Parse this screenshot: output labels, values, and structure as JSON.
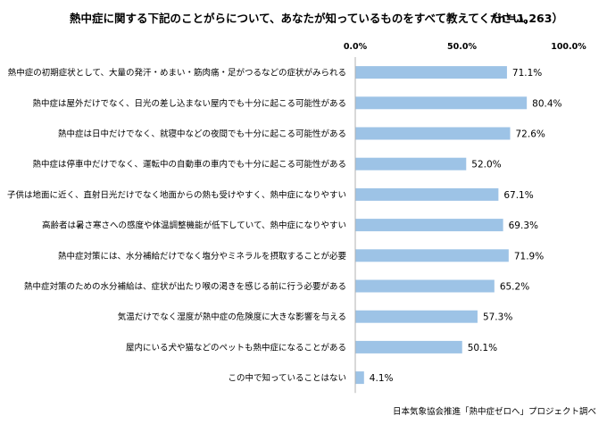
{
  "chart_data": {
    "type": "bar",
    "orientation": "horizontal",
    "title": "熱中症に関する下記のことがらについて、あなたが知っているものをすべて教えてください。",
    "sample_size": "（n＝1,263）",
    "source": "日本気象協会推進「熱中症ゼロへ」プロジェクト調べ",
    "xlim": [
      0,
      100
    ],
    "ticks": [
      {
        "value": 0,
        "label": "0.0%"
      },
      {
        "value": 50,
        "label": "50.0%"
      },
      {
        "value": 100,
        "label": "100.0%"
      }
    ],
    "grid": false,
    "bar_color": "#9dc3e6",
    "categories": [
      "熱中症の初期症状として、大量の発汗・めまい・筋肉痛・足がつるなどの症状がみられる",
      "熱中症は屋外だけでなく、日光の差し込まない屋内でも十分に起こる可能性がある",
      "熱中症は日中だけでなく、就寝中などの夜間でも十分に起こる可能性がある",
      "熱中症は停車中だけでなく、運転中の自動車の車内でも十分に起こる可能性がある",
      "子供は地面に近く、直射日光だけでなく地面からの熱も受けやすく、熱中症になりやすい",
      "高齢者は暑さ寒さへの感度や体温調整機能が低下していて、熱中症になりやすい",
      "熱中症対策には、水分補給だけでなく塩分やミネラルを摂取することが必要",
      "熱中症対策のための水分補給は、症状が出たり喉の渇きを感じる前に行う必要がある",
      "気温だけでなく湿度が熱中症の危険度に大きな影響を与える",
      "屋内にいる犬や猫などのペットも熱中症になることがある",
      "この中で知っていることはない"
    ],
    "values": [
      71.1,
      80.4,
      72.6,
      52.0,
      67.1,
      69.3,
      71.9,
      65.2,
      57.3,
      50.1,
      4.1
    ],
    "value_labels": [
      "71.1%",
      "80.4%",
      "72.6%",
      "52.0%",
      "67.1%",
      "69.3%",
      "71.9%",
      "65.2%",
      "57.3%",
      "50.1%",
      "4.1%"
    ]
  }
}
